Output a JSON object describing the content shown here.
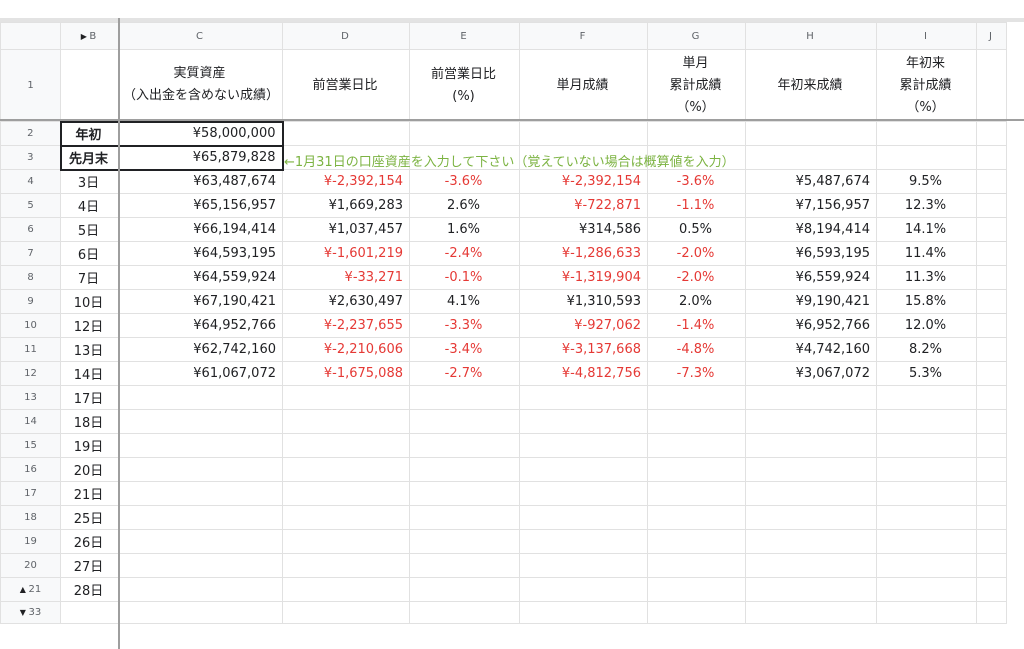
{
  "columns": [
    "B",
    "C",
    "D",
    "E",
    "F",
    "G",
    "H",
    "I",
    "J"
  ],
  "header_row_number": "1",
  "headers": {
    "C": "実質資産\n（入出金を含めない成績）",
    "D": "前営業日比",
    "E": "前営業日比\n(%)",
    "F": "単月成績",
    "G": "単月\n累計成績\n（%）",
    "H": "年初来成績",
    "I": "年初来\n累計成績\n（%）"
  },
  "special_rows": [
    {
      "num": "2",
      "label": "年初",
      "asset": "¥58,000,000"
    },
    {
      "num": "3",
      "label": "先月末",
      "asset": "¥65,879,828"
    }
  ],
  "note": "←1月31日の口座資産を入力して下さい（覚えていない場合は概算値を入力）",
  "rows": [
    {
      "num": "4",
      "day": "3日",
      "asset": "¥63,487,674",
      "prev": "¥-2,392,154",
      "prev_pct": "-3.6%",
      "month": "¥-2,392,154",
      "month_pct": "-3.6%",
      "ytd": "¥5,487,674",
      "ytd_pct": "9.5%"
    },
    {
      "num": "5",
      "day": "4日",
      "asset": "¥65,156,957",
      "prev": "¥1,669,283",
      "prev_pct": "2.6%",
      "month": "¥-722,871",
      "month_pct": "-1.1%",
      "ytd": "¥7,156,957",
      "ytd_pct": "12.3%"
    },
    {
      "num": "6",
      "day": "5日",
      "asset": "¥66,194,414",
      "prev": "¥1,037,457",
      "prev_pct": "1.6%",
      "month": "¥314,586",
      "month_pct": "0.5%",
      "ytd": "¥8,194,414",
      "ytd_pct": "14.1%"
    },
    {
      "num": "7",
      "day": "6日",
      "asset": "¥64,593,195",
      "prev": "¥-1,601,219",
      "prev_pct": "-2.4%",
      "month": "¥-1,286,633",
      "month_pct": "-2.0%",
      "ytd": "¥6,593,195",
      "ytd_pct": "11.4%"
    },
    {
      "num": "8",
      "day": "7日",
      "asset": "¥64,559,924",
      "prev": "¥-33,271",
      "prev_pct": "-0.1%",
      "month": "¥-1,319,904",
      "month_pct": "-2.0%",
      "ytd": "¥6,559,924",
      "ytd_pct": "11.3%"
    },
    {
      "num": "9",
      "day": "10日",
      "asset": "¥67,190,421",
      "prev": "¥2,630,497",
      "prev_pct": "4.1%",
      "month": "¥1,310,593",
      "month_pct": "2.0%",
      "ytd": "¥9,190,421",
      "ytd_pct": "15.8%"
    },
    {
      "num": "10",
      "day": "12日",
      "asset": "¥64,952,766",
      "prev": "¥-2,237,655",
      "prev_pct": "-3.3%",
      "month": "¥-927,062",
      "month_pct": "-1.4%",
      "ytd": "¥6,952,766",
      "ytd_pct": "12.0%"
    },
    {
      "num": "11",
      "day": "13日",
      "asset": "¥62,742,160",
      "prev": "¥-2,210,606",
      "prev_pct": "-3.4%",
      "month": "¥-3,137,668",
      "month_pct": "-4.8%",
      "ytd": "¥4,742,160",
      "ytd_pct": "8.2%"
    },
    {
      "num": "12",
      "day": "14日",
      "asset": "¥61,067,072",
      "prev": "¥-1,675,088",
      "prev_pct": "-2.7%",
      "month": "¥-4,812,756",
      "month_pct": "-7.3%",
      "ytd": "¥3,067,072",
      "ytd_pct": "5.3%"
    }
  ],
  "empty_rows": [
    {
      "num": "13",
      "day": "17日"
    },
    {
      "num": "14",
      "day": "18日"
    },
    {
      "num": "15",
      "day": "19日"
    },
    {
      "num": "16",
      "day": "20日"
    },
    {
      "num": "17",
      "day": "21日"
    },
    {
      "num": "18",
      "day": "25日"
    },
    {
      "num": "19",
      "day": "26日"
    },
    {
      "num": "20",
      "day": "27日"
    },
    {
      "num": "21",
      "day": "28日"
    }
  ],
  "footer_row_number": "33",
  "colors": {
    "negative": "#e53935",
    "note": "#7cb342"
  }
}
